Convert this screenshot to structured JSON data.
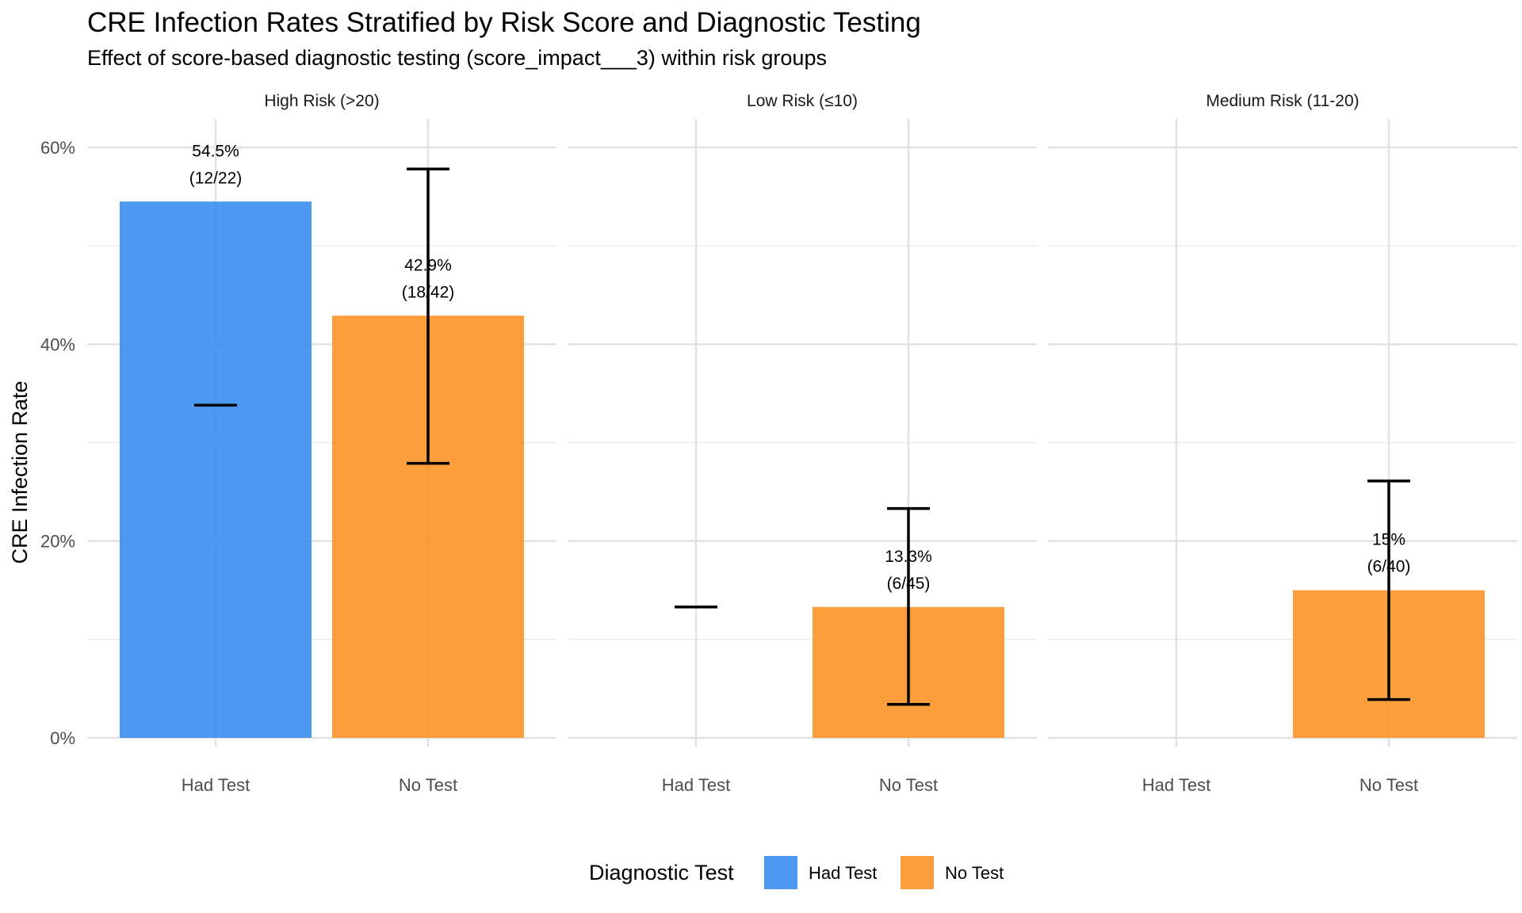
{
  "chart_data": {
    "type": "bar",
    "title": "CRE Infection Rates Stratified by Risk Score and Diagnostic Testing",
    "subtitle": "Effect of score-based diagnostic testing (score_impact___3) within risk groups",
    "ylabel": "CRE Infection Rate",
    "xlabel": "",
    "ylim": [
      0,
      0.6
    ],
    "yticks": [
      0,
      0.2,
      0.4,
      0.6
    ],
    "ytick_labels": [
      "0%",
      "20%",
      "40%",
      "60%"
    ],
    "categories": [
      "Had Test",
      "No Test"
    ],
    "legend": {
      "title": "Diagnostic Test",
      "position": "bottom",
      "entries": [
        {
          "label": "Had Test",
          "color": "#3a8eef"
        },
        {
          "label": "No Test",
          "color": "#fd9428"
        }
      ]
    },
    "grid": true,
    "facets": [
      {
        "name": "High Risk (>20)",
        "bars": [
          {
            "category": "Had Test",
            "value": 0.545,
            "label": "54.5%",
            "count": "(12/22)",
            "err_low": 0.338,
            "err_high": 0.338
          },
          {
            "category": "No Test",
            "value": 0.429,
            "label": "42.9%",
            "count": "(18/42)",
            "err_low": 0.279,
            "err_high": 0.578
          }
        ]
      },
      {
        "name": "Low Risk (≤10)",
        "bars": [
          {
            "category": "Had Test",
            "value": null,
            "label": null,
            "count": null,
            "err_low": 0.133,
            "err_high": 0.133
          },
          {
            "category": "No Test",
            "value": 0.133,
            "label": "13.3%",
            "count": "(6/45)",
            "err_low": 0.034,
            "err_high": 0.233
          }
        ]
      },
      {
        "name": "Medium Risk (11-20)",
        "bars": [
          {
            "category": "Had Test",
            "value": null,
            "label": null,
            "count": null,
            "err_low": null,
            "err_high": null
          },
          {
            "category": "No Test",
            "value": 0.15,
            "label": "15%",
            "count": "(6/40)",
            "err_low": 0.039,
            "err_high": 0.261
          }
        ]
      }
    ]
  }
}
